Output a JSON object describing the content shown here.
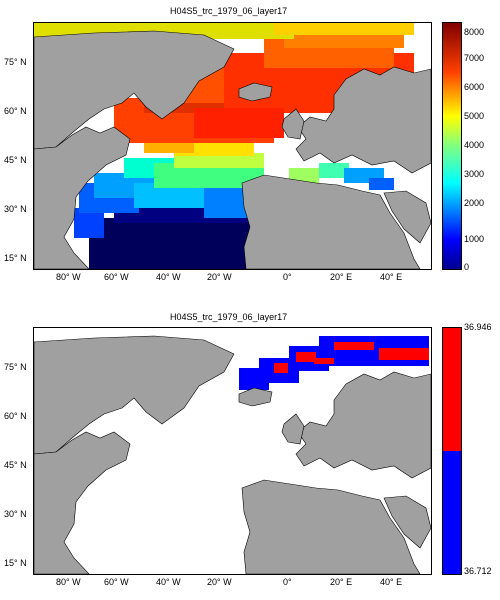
{
  "chart_data": [
    {
      "type": "heatmap",
      "title": "H04S5_trc_1979_06_layer17",
      "xticks": [
        "80° W",
        "60° W",
        "40° W",
        "20° W",
        "0°",
        "20° E",
        "40° E"
      ],
      "xtick_values": [
        -80,
        -60,
        -40,
        -20,
        0,
        20,
        40
      ],
      "yticks": [
        "75° N",
        "60° N",
        "45° N",
        "30° N",
        "15° N"
      ],
      "ytick_values": [
        75,
        60,
        45,
        30,
        15
      ],
      "xlim": [
        -90,
        52
      ],
      "ylim": [
        12,
        87
      ],
      "colorbar": {
        "ticks": [
          "8000",
          "7000",
          "6000",
          "5000",
          "4000",
          "3000",
          "2000",
          "1000",
          "0"
        ],
        "range": [
          0,
          8000
        ],
        "colormap": "jet"
      },
      "land_color": "#a0a0a0",
      "ocean_nodata_color": "#ffffff",
      "grid": false
    },
    {
      "type": "heatmap",
      "title": "H04S5_trc_1979_06_layer17",
      "xticks": [
        "80° W",
        "60° W",
        "40° W",
        "20° W",
        "0°",
        "20° E",
        "40° E"
      ],
      "xtick_values": [
        -80,
        -60,
        -40,
        -20,
        0,
        20,
        40
      ],
      "yticks": [
        "75° N",
        "60° N",
        "45° N",
        "30° N",
        "15° N"
      ],
      "ytick_values": [
        75,
        60,
        45,
        30,
        15
      ],
      "xlim": [
        -90,
        52
      ],
      "ylim": [
        12,
        87
      ],
      "colorbar": {
        "ticks": [
          "36.946",
          "36.712"
        ],
        "range": [
          36.712,
          36.946
        ],
        "colors": [
          "#0000ff",
          "#ff0000"
        ]
      },
      "land_color": "#a0a0a0",
      "ocean_nodata_color": "#ffffff",
      "grid": false
    }
  ]
}
